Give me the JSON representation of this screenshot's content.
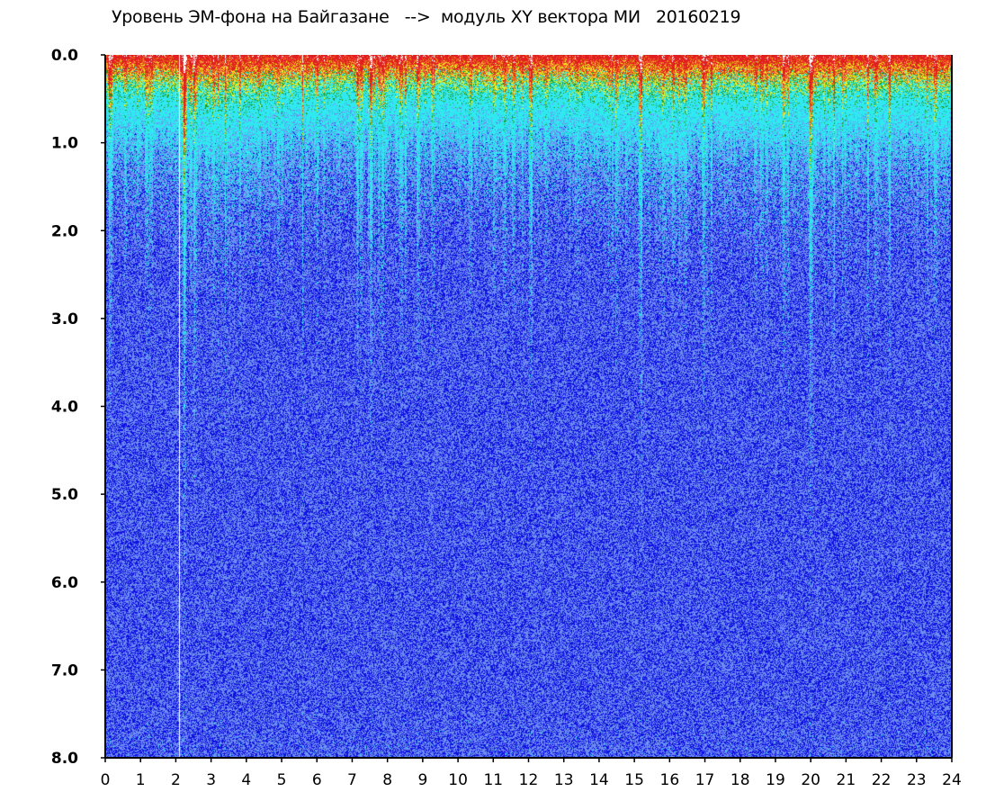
{
  "chart_data": {
    "type": "heatmap",
    "title": "Уровень ЭМ-фона на Байгазане   -->  модуль XY вектора МИ   20160219",
    "xlabel": "",
    "ylabel": "",
    "xlim": [
      0,
      24
    ],
    "ylim": [
      0,
      8
    ],
    "y_inverted": true,
    "x_ticks": [
      "0",
      "1",
      "2",
      "3",
      "4",
      "5",
      "6",
      "7",
      "8",
      "9",
      "10",
      "11",
      "12",
      "13",
      "14",
      "15",
      "16",
      "17",
      "18",
      "19",
      "20",
      "21",
      "22",
      "23",
      "24"
    ],
    "y_ticks": [
      "0.0",
      "1.0",
      "2.0",
      "3.0",
      "4.0",
      "5.0",
      "6.0",
      "7.0",
      "8.0"
    ],
    "grid": false,
    "colorscale": [
      "#1010e0",
      "#6c8cf0",
      "#30e8f0",
      "#20a020",
      "#f0f020",
      "#f08020",
      "#e02020"
    ],
    "colorscale_low": "blue",
    "colorscale_high": "red",
    "intensity_profile_by_hour": [
      {
        "x": 0,
        "level": 0.55
      },
      {
        "x": 1,
        "level": 0.7
      },
      {
        "x": 2,
        "level": 0.8
      },
      {
        "x": 3,
        "level": 1.1
      },
      {
        "x": 4,
        "level": 0.9
      },
      {
        "x": 5,
        "level": 0.7
      },
      {
        "x": 6,
        "level": 0.6
      },
      {
        "x": 7,
        "level": 0.6
      },
      {
        "x": 8,
        "level": 0.7
      },
      {
        "x": 9,
        "level": 0.6
      },
      {
        "x": 10,
        "level": 0.6
      },
      {
        "x": 11,
        "level": 0.7
      },
      {
        "x": 12,
        "level": 0.7
      },
      {
        "x": 13,
        "level": 0.6
      },
      {
        "x": 14,
        "level": 0.8
      },
      {
        "x": 15,
        "level": 0.8
      },
      {
        "x": 16,
        "level": 1.0
      },
      {
        "x": 17,
        "level": 0.6
      },
      {
        "x": 18,
        "level": 0.7
      },
      {
        "x": 19,
        "level": 0.7
      },
      {
        "x": 20,
        "level": 0.8
      },
      {
        "x": 21,
        "level": 0.8
      },
      {
        "x": 22,
        "level": 0.8
      },
      {
        "x": 23,
        "level": 0.8
      },
      {
        "x": 24,
        "level": 0.8
      }
    ],
    "gap_columns": [
      2.1
    ]
  }
}
